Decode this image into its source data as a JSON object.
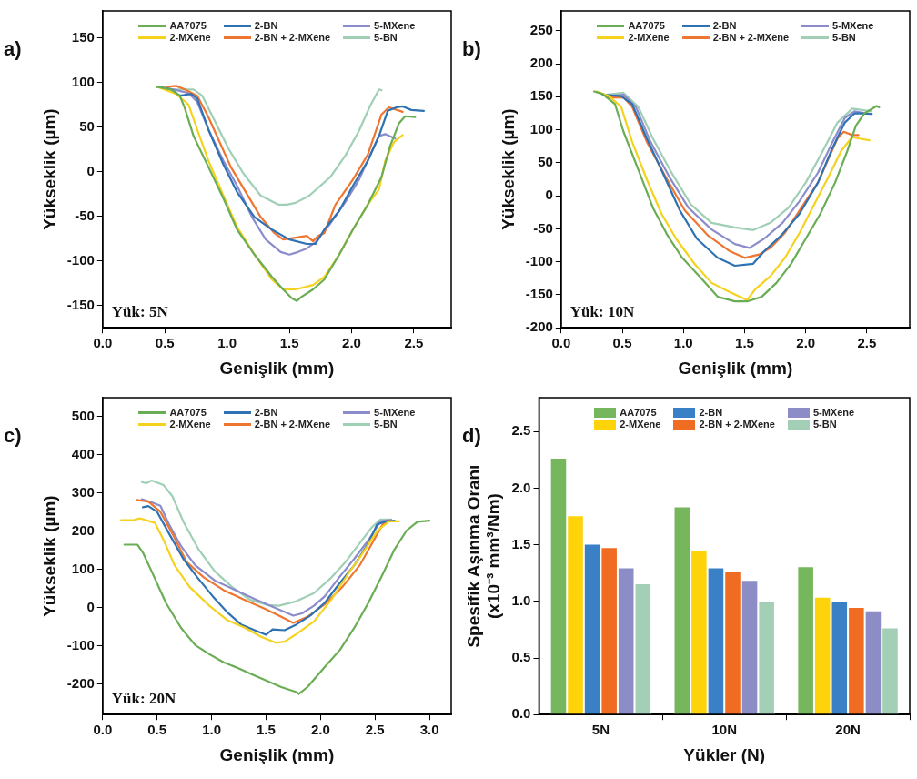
{
  "chart_data": [
    {
      "type": "line",
      "title": "a)",
      "xlabel": "Genişlik (mm)",
      "ylabel": "Yükseklik (µm)",
      "legend": "top",
      "marker": "none",
      "line_style": "solid",
      "grid": false,
      "xlim": [
        0,
        2.8
      ],
      "ylim": [
        -175,
        180
      ],
      "xticks": [
        {
          "value": 0,
          "label": "0.0"
        },
        0.5,
        {
          "value": 1,
          "label": "1.0"
        },
        1.5,
        {
          "value": 2,
          "label": "2.0"
        },
        2.5
      ],
      "yticks": [
        -150,
        -100,
        -50,
        0,
        50,
        100,
        150
      ],
      "annotations": [
        "Yük: 5N"
      ],
      "series": [
        {
          "name": "AA7075",
          "color": "#6aad55",
          "x": [
            0.44,
            0.55,
            0.62,
            0.66,
            0.73,
            0.85,
            0.97,
            1.08,
            1.22,
            1.36,
            1.45,
            1.52,
            1.56,
            1.59,
            1.69,
            1.78,
            1.9,
            2.01,
            2.13,
            2.24,
            2.31,
            2.38,
            2.43,
            2.51
          ],
          "values": [
            95,
            92,
            85,
            71,
            40,
            5,
            -30,
            -65,
            -93,
            -118,
            -132,
            -142,
            -145,
            -141,
            -132,
            -121,
            -93,
            -65,
            -37,
            -6,
            29,
            54,
            62,
            61
          ]
        },
        {
          "name": "2-MXene",
          "color": "#f5d21e",
          "x": [
            0.44,
            0.59,
            0.69,
            0.76,
            0.85,
            0.97,
            1.08,
            1.22,
            1.36,
            1.45,
            1.55,
            1.69,
            1.78,
            1.9,
            2.01,
            2.13,
            2.22,
            2.27,
            2.34,
            2.41
          ],
          "values": [
            95,
            87,
            75,
            47,
            12,
            -27,
            -62,
            -93,
            -121,
            -132,
            -132,
            -127,
            -118,
            -93,
            -65,
            -37,
            -20,
            12,
            33,
            41
          ]
        },
        {
          "name": "2-BN",
          "color": "#2f72b3",
          "x": [
            0.44,
            0.55,
            0.62,
            0.71,
            0.76,
            0.85,
            0.97,
            1.08,
            1.22,
            1.36,
            1.5,
            1.64,
            1.71,
            1.78,
            1.9,
            2.01,
            2.13,
            2.22,
            2.29,
            2.36,
            2.41,
            2.48,
            2.58
          ],
          "values": [
            95,
            92,
            85,
            87,
            82,
            47,
            8,
            -23,
            -51,
            -65,
            -76,
            -81,
            -81,
            -65,
            -44,
            -16,
            12,
            40,
            68,
            72,
            73,
            69,
            68
          ]
        },
        {
          "name": "2-BN + 2-MXene",
          "color": "#ee7631",
          "x": [
            0.52,
            0.59,
            0.66,
            0.76,
            0.85,
            0.94,
            1.03,
            1.15,
            1.27,
            1.38,
            1.45,
            1.55,
            1.64,
            1.69,
            1.73,
            1.78,
            1.87,
            2.01,
            2.13,
            2.24,
            2.3,
            2.41
          ],
          "values": [
            95,
            96,
            92,
            85,
            61,
            33,
            5,
            -23,
            -51,
            -69,
            -76,
            -74,
            -72,
            -78,
            -72,
            -69,
            -37,
            -9,
            19,
            64,
            72,
            67
          ]
        },
        {
          "name": "5-MXene",
          "color": "#8b8ccb",
          "x": [
            0.44,
            0.57,
            0.69,
            0.76,
            0.85,
            0.97,
            1.08,
            1.2,
            1.31,
            1.43,
            1.5,
            1.57,
            1.64,
            1.71,
            1.83,
            1.95,
            2.06,
            2.15,
            2.22,
            2.27,
            2.35
          ],
          "values": [
            95,
            92,
            88,
            78,
            47,
            12,
            -16,
            -51,
            -76,
            -90,
            -93,
            -90,
            -86,
            -79,
            -58,
            -34,
            -9,
            19,
            40,
            42,
            37
          ]
        },
        {
          "name": "5-BN",
          "color": "#9fcfb5",
          "x": [
            0.44,
            0.57,
            0.73,
            0.8,
            0.9,
            1.01,
            1.13,
            1.27,
            1.41,
            1.48,
            1.55,
            1.66,
            1.83,
            1.95,
            2.06,
            2.15,
            2.22,
            2.24
          ],
          "values": [
            95,
            92,
            92,
            85,
            57,
            26,
            -2,
            -27,
            -37,
            -37,
            -35,
            -27,
            -6,
            18,
            46,
            74,
            92,
            91
          ]
        }
      ]
    },
    {
      "type": "line",
      "title": "b)",
      "xlabel": "Genişlik (mm)",
      "ylabel": "Yükseklik (µm)",
      "legend": "top",
      "marker": "none",
      "line_style": "solid",
      "grid": false,
      "xlim": [
        0,
        2.85
      ],
      "ylim": [
        -200,
        280
      ],
      "xticks": [
        {
          "value": 0,
          "label": "0.0"
        },
        0.5,
        {
          "value": 1,
          "label": "1.0"
        },
        1.5,
        {
          "value": 2,
          "label": "2.0"
        },
        2.5
      ],
      "yticks": [
        -200,
        -150,
        -100,
        -50,
        0,
        50,
        100,
        150,
        200,
        250
      ],
      "annotations": [
        "Yük: 10N"
      ],
      "series": [
        {
          "name": "AA7075",
          "color": "#6aad55",
          "x": [
            0.27,
            0.34,
            0.44,
            0.51,
            0.63,
            0.75,
            0.87,
            0.99,
            1.13,
            1.28,
            1.42,
            1.52,
            1.64,
            1.76,
            1.88,
            2.0,
            2.12,
            2.24,
            2.34,
            2.41,
            2.48,
            2.58,
            2.6
          ],
          "values": [
            158,
            154,
            139,
            97,
            40,
            -18,
            -60,
            -94,
            -122,
            -153,
            -160,
            -160,
            -153,
            -132,
            -103,
            -65,
            -27,
            20,
            68,
            106,
            125,
            136,
            134
          ]
        },
        {
          "name": "2-MXene",
          "color": "#f5d21e",
          "x": [
            0.29,
            0.39,
            0.49,
            0.58,
            0.7,
            0.82,
            0.94,
            1.09,
            1.23,
            1.38,
            1.52,
            1.59,
            1.71,
            1.83,
            1.95,
            2.07,
            2.19,
            2.29,
            2.38,
            2.43,
            2.52
          ],
          "values": [
            158,
            151,
            135,
            82,
            25,
            -27,
            -65,
            -103,
            -132,
            -146,
            -158,
            -141,
            -122,
            -94,
            -56,
            -13,
            30,
            68,
            89,
            87,
            84
          ]
        },
        {
          "name": "2-BN",
          "color": "#2f72b3",
          "x": [
            0.34,
            0.49,
            0.58,
            0.7,
            0.82,
            0.97,
            1.11,
            1.28,
            1.42,
            1.57,
            1.66,
            1.8,
            1.95,
            2.1,
            2.22,
            2.32,
            2.4,
            2.54
          ],
          "values": [
            153,
            151,
            139,
            87,
            39,
            -22,
            -65,
            -94,
            -106,
            -103,
            -84,
            -60,
            -27,
            20,
            73,
            111,
            125,
            124
          ]
        },
        {
          "name": "2-BN + 2-MXene",
          "color": "#ee7631",
          "x": [
            0.37,
            0.51,
            0.58,
            0.7,
            0.85,
            1.01,
            1.2,
            1.38,
            1.5,
            1.62,
            1.71,
            1.83,
            1.95,
            2.1,
            2.19,
            2.26,
            2.31,
            2.38,
            2.43
          ],
          "values": [
            149,
            149,
            135,
            82,
            30,
            -22,
            -60,
            -84,
            -94,
            -89,
            -79,
            -56,
            -22,
            20,
            58,
            87,
            97,
            92,
            92
          ]
        },
        {
          "name": "5-MXene",
          "color": "#8b8ccb",
          "x": [
            0.37,
            0.51,
            0.61,
            0.73,
            0.88,
            1.04,
            1.23,
            1.42,
            1.54,
            1.66,
            1.81,
            1.95,
            2.1,
            2.22,
            2.32,
            2.4,
            2.48
          ],
          "values": [
            151,
            153,
            135,
            82,
            30,
            -18,
            -51,
            -73,
            -79,
            -65,
            -41,
            -8,
            35,
            82,
            118,
            128,
            125
          ]
        },
        {
          "name": "5-BN",
          "color": "#9fcfb5",
          "x": [
            0.37,
            0.51,
            0.63,
            0.75,
            0.89,
            1.06,
            1.23,
            1.42,
            1.57,
            1.71,
            1.86,
            2.0,
            2.14,
            2.26,
            2.38,
            2.46,
            2.53
          ],
          "values": [
            153,
            156,
            135,
            87,
            39,
            -13,
            -41,
            -48,
            -52,
            -41,
            -18,
            20,
            68,
            111,
            132,
            130,
            128
          ]
        }
      ]
    },
    {
      "type": "line",
      "title": "c)",
      "xlabel": "Genişlik (mm)",
      "ylabel": "Yükseklik (µm)",
      "legend": "top",
      "marker": "none",
      "line_style": "solid",
      "grid": false,
      "xlim": [
        0,
        3.2
      ],
      "ylim": [
        -280,
        550
      ],
      "xticks": [
        {
          "value": 0,
          "label": "0.0"
        },
        0.5,
        {
          "value": 1,
          "label": "1.0"
        },
        1.5,
        {
          "value": 2,
          "label": "2.0"
        },
        2.5,
        {
          "value": 3,
          "label": "3.0"
        }
      ],
      "yticks": [
        -200,
        -100,
        0,
        100,
        200,
        300,
        400,
        500
      ],
      "annotations": [
        "Yük: 20N"
      ],
      "series": [
        {
          "name": "AA7075",
          "color": "#6aad55",
          "x": [
            0.2,
            0.32,
            0.37,
            0.45,
            0.58,
            0.72,
            0.85,
            0.98,
            1.11,
            1.25,
            1.38,
            1.51,
            1.64,
            1.78,
            1.8,
            1.88,
            2.04,
            2.18,
            2.31,
            2.44,
            2.57,
            2.68,
            2.79,
            2.89,
            3.0
          ],
          "values": [
            165,
            165,
            144,
            95,
            13,
            -53,
            -98,
            -122,
            -143,
            -159,
            -176,
            -192,
            -208,
            -221,
            -226,
            -208,
            -155,
            -110,
            -53,
            13,
            87,
            153,
            202,
            225,
            228
          ]
        },
        {
          "name": "2-MXene",
          "color": "#f5d21e",
          "x": [
            0.17,
            0.29,
            0.34,
            0.48,
            0.56,
            0.66,
            0.8,
            0.98,
            1.14,
            1.3,
            1.46,
            1.59,
            1.67,
            1.78,
            1.94,
            2.1,
            2.25,
            2.39,
            2.52,
            2.63,
            2.72
          ],
          "values": [
            229,
            230,
            234,
            222,
            177,
            111,
            54,
            5,
            -32,
            -52,
            -77,
            -92,
            -89,
            -69,
            -36,
            21,
            87,
            144,
            201,
            226,
            226
          ]
        },
        {
          "name": "2-BN",
          "color": "#2f72b3",
          "x": [
            0.37,
            0.42,
            0.5,
            0.61,
            0.74,
            0.87,
            1.01,
            1.14,
            1.27,
            1.41,
            1.5,
            1.56,
            1.67,
            1.78,
            1.91,
            2.04,
            2.17,
            2.31,
            2.44,
            2.52,
            2.6,
            2.68
          ],
          "values": [
            263,
            266,
            251,
            194,
            128,
            79,
            30,
            -11,
            -44,
            -61,
            -71,
            -57,
            -59,
            -44,
            -20,
            13,
            62,
            111,
            169,
            218,
            226,
            228
          ]
        },
        {
          "name": "2-BN + 2-MXene",
          "color": "#ee7631",
          "x": [
            0.31,
            0.42,
            0.53,
            0.64,
            0.77,
            0.93,
            1.11,
            1.3,
            1.49,
            1.64,
            1.75,
            1.88,
            2.04,
            2.2,
            2.36,
            2.49,
            2.57,
            2.63,
            2.68
          ],
          "values": [
            282,
            278,
            251,
            194,
            120,
            79,
            46,
            21,
            -3,
            -24,
            -40,
            -24,
            9,
            54,
            111,
            177,
            218,
            228,
            226
          ]
        },
        {
          "name": "5-MXene",
          "color": "#8b8ccb",
          "x": [
            0.36,
            0.45,
            0.53,
            0.61,
            0.72,
            0.85,
            1.03,
            1.22,
            1.41,
            1.57,
            1.75,
            1.83,
            1.94,
            2.04,
            2.17,
            2.31,
            2.44,
            2.55,
            2.65
          ],
          "values": [
            284,
            276,
            267,
            218,
            161,
            111,
            71,
            46,
            21,
            1,
            -21,
            -15,
            5,
            30,
            79,
            128,
            177,
            226,
            230
          ]
        },
        {
          "name": "5-BN",
          "color": "#9fcfb5",
          "x": [
            0.36,
            0.4,
            0.45,
            0.56,
            0.64,
            0.74,
            0.88,
            1.03,
            1.19,
            1.35,
            1.51,
            1.62,
            1.78,
            1.94,
            2.1,
            2.23,
            2.36,
            2.47,
            2.55,
            2.65
          ],
          "values": [
            329,
            326,
            333,
            321,
            292,
            226,
            153,
            95,
            54,
            21,
            7,
            5,
            17,
            38,
            79,
            120,
            169,
            210,
            231,
            231
          ]
        }
      ]
    },
    {
      "type": "bar",
      "title": "d)",
      "xlabel": "Yükler (N)",
      "ylabel": "Spesifik Aşınma Oranı\n(x10⁻³ mm³/Nm)",
      "legend": "top",
      "grid": false,
      "categories": [
        "5N",
        "10N",
        "20N"
      ],
      "ylim": [
        0,
        2.8
      ],
      "yticks": [
        {
          "value": 0,
          "label": "0.0"
        },
        0.5,
        {
          "value": 1,
          "label": "1.0"
        },
        1.5,
        {
          "value": 2,
          "label": "2.0"
        },
        2.5
      ],
      "series": [
        {
          "name": "AA7075",
          "color": "#76b65d",
          "values": [
            2.27,
            1.84,
            1.31
          ]
        },
        {
          "name": "2-MXene",
          "color": "#ffd30a",
          "values": [
            1.76,
            1.45,
            1.04
          ]
        },
        {
          "name": "2-BN",
          "color": "#3a80c6",
          "values": [
            1.51,
            1.3,
            1.0
          ]
        },
        {
          "name": "2-BN + 2-MXene",
          "color": "#f06c23",
          "values": [
            1.48,
            1.27,
            0.95
          ]
        },
        {
          "name": "5-MXene",
          "color": "#8c8dc6",
          "values": [
            1.3,
            1.19,
            0.92
          ]
        },
        {
          "name": "5-BN",
          "color": "#a2cfb6",
          "values": [
            1.16,
            1.0,
            0.77
          ]
        }
      ]
    }
  ]
}
